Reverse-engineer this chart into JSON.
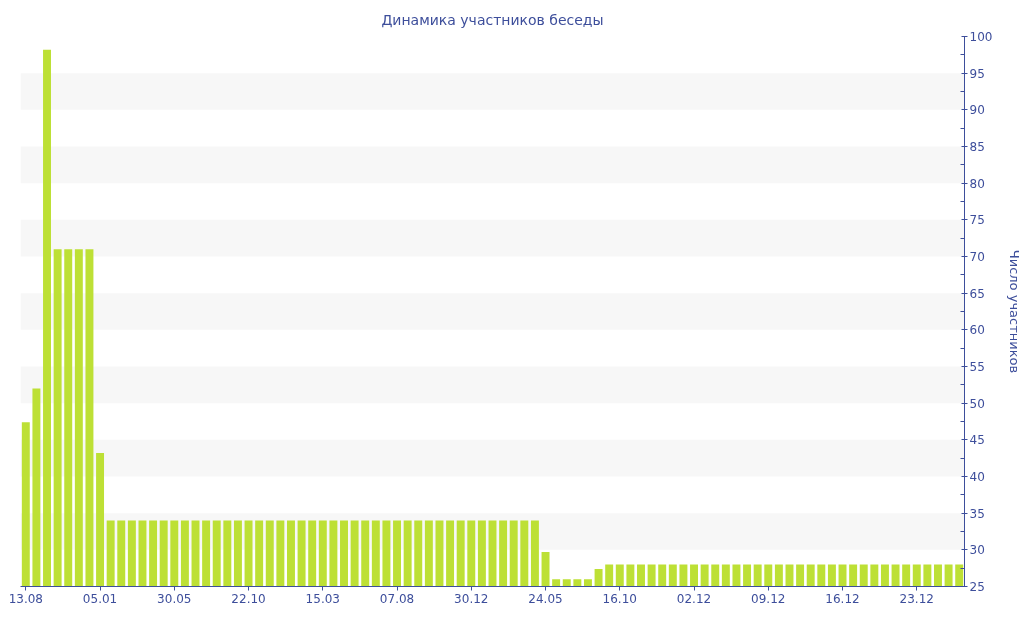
{
  "chart_data": {
    "type": "bar",
    "title": "Динамика участников беседы",
    "ylabel": "Число участников",
    "categories": [
      "13.08",
      null,
      null,
      null,
      null,
      null,
      null,
      "05.01",
      null,
      null,
      null,
      null,
      null,
      null,
      "30.05",
      null,
      null,
      null,
      null,
      null,
      null,
      "22.10",
      null,
      null,
      null,
      null,
      null,
      null,
      "15.03",
      null,
      null,
      null,
      null,
      null,
      null,
      "07.08",
      null,
      null,
      null,
      null,
      null,
      null,
      "30.12",
      null,
      null,
      null,
      null,
      null,
      null,
      "24.05",
      null,
      null,
      null,
      null,
      null,
      null,
      "16.10",
      null,
      null,
      null,
      null,
      null,
      null,
      "02.12",
      null,
      null,
      null,
      null,
      null,
      null,
      "09.12",
      null,
      null,
      null,
      null,
      null,
      null,
      "16.12",
      null,
      null,
      null,
      null,
      null,
      null,
      "23.12",
      null,
      null,
      null,
      null
    ],
    "values": [
      47.4,
      52,
      98.2,
      71,
      71,
      71,
      71,
      43.2,
      34,
      34,
      34,
      34,
      34,
      34,
      34,
      34,
      34,
      34,
      34,
      34,
      34,
      34,
      34,
      34,
      34,
      34,
      34,
      34,
      34,
      34,
      34,
      34,
      34,
      34,
      34,
      34,
      34,
      34,
      34,
      34,
      34,
      34,
      34,
      34,
      34,
      34,
      34,
      34,
      34,
      29.7,
      26,
      26,
      26,
      26,
      27.4,
      28,
      28,
      28,
      28,
      28,
      28,
      28,
      28,
      28,
      28,
      28,
      28,
      28,
      28,
      28,
      28,
      28,
      28,
      28,
      28,
      28,
      28,
      28,
      28,
      28,
      28,
      28,
      28,
      28,
      28,
      28,
      28,
      28,
      28
    ],
    "color": "#bde035",
    "ylim": [
      25,
      100
    ],
    "yticks": [
      25,
      30,
      35,
      40,
      45,
      50,
      55,
      60,
      65,
      70,
      75,
      80,
      85,
      90,
      95,
      100
    ],
    "bands": [
      {
        "axis": "y",
        "from": 30,
        "to": 35,
        "color": "#f7f7f7"
      },
      {
        "axis": "y",
        "from": 40,
        "to": 45,
        "color": "#f7f7f7"
      },
      {
        "axis": "y",
        "from": 50,
        "to": 55,
        "color": "#f7f7f7"
      },
      {
        "axis": "y",
        "from": 60,
        "to": 65,
        "color": "#f7f7f7"
      },
      {
        "axis": "y",
        "from": 70,
        "to": 75,
        "color": "#f7f7f7"
      },
      {
        "axis": "y",
        "from": 80,
        "to": 85,
        "color": "#f7f7f7"
      },
      {
        "axis": "y",
        "from": 90,
        "to": 95,
        "color": "#f7f7f7"
      }
    ]
  }
}
